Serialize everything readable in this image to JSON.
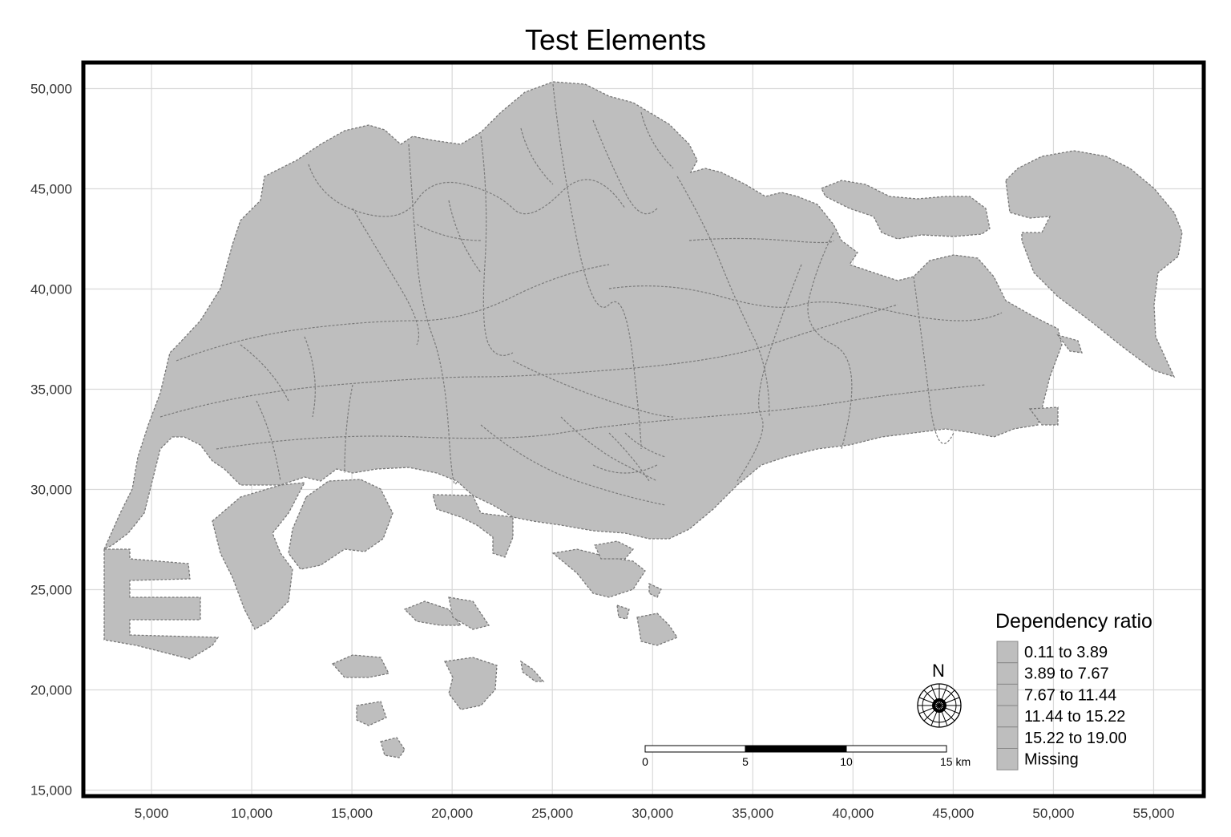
{
  "title": "Test Elements",
  "chart_data": {
    "type": "choropleth-map",
    "x_ticks": [
      "5,000",
      "10,000",
      "15,000",
      "20,000",
      "25,000",
      "30,000",
      "35,000",
      "40,000",
      "45,000",
      "50,000",
      "55,000"
    ],
    "y_ticks": [
      "50,000",
      "45,000",
      "40,000",
      "35,000",
      "30,000",
      "25,000",
      "20,000",
      "15,000"
    ],
    "x_tick_values": [
      5000,
      10000,
      15000,
      20000,
      25000,
      30000,
      35000,
      40000,
      45000,
      50000,
      55000
    ],
    "y_tick_values": [
      50000,
      45000,
      40000,
      35000,
      30000,
      25000,
      20000,
      15000
    ],
    "xlim": [
      1600,
      57500
    ],
    "ylim": [
      14700,
      51300
    ],
    "grid": true,
    "fill_color": "#bebebe",
    "legend": {
      "title": "Dependency ratio",
      "placement": "bottom-right",
      "items": [
        {
          "label": "0.11 to 3.89",
          "color": "#bebebe"
        },
        {
          "label": "3.89 to 7.67",
          "color": "#bebebe"
        },
        {
          "label": "7.67 to 11.44",
          "color": "#bebebe"
        },
        {
          "label": "11.44 to 15.22",
          "color": "#bebebe"
        },
        {
          "label": "15.22 to 19.00",
          "color": "#bebebe"
        },
        {
          "label": "Missing",
          "color": "#bebebe"
        }
      ]
    },
    "scale_bar": {
      "labels": [
        "0",
        "5",
        "10",
        "15 km"
      ]
    },
    "north_arrow": {
      "label": "N",
      "icon": "compass-rose-icon"
    }
  }
}
